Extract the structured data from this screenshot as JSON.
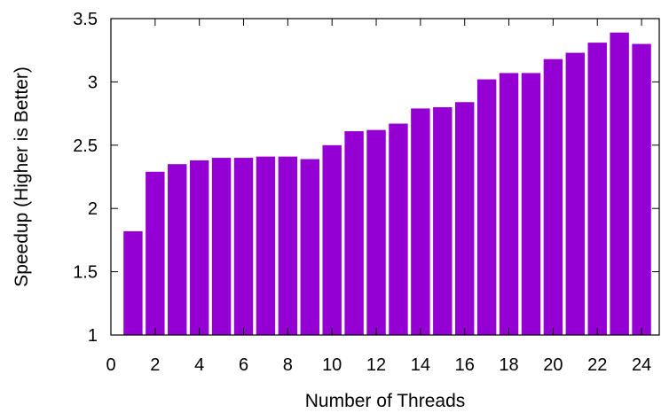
{
  "chart_data": {
    "type": "bar",
    "xlabel": "Number of Threads",
    "ylabel": "Speedup (Higher is Better)",
    "xlim": [
      0,
      24.8
    ],
    "ylim": [
      1,
      3.5
    ],
    "xticks": [
      0,
      2,
      4,
      6,
      8,
      10,
      12,
      14,
      16,
      18,
      20,
      22,
      24
    ],
    "yticks": [
      1,
      1.5,
      2,
      2.5,
      3,
      3.5
    ],
    "ytick_labels": [
      "1",
      "1.5",
      "2",
      "2.5",
      "3",
      "3.5"
    ],
    "x": [
      1,
      2,
      3,
      4,
      5,
      6,
      7,
      8,
      9,
      10,
      11,
      12,
      13,
      14,
      15,
      16,
      17,
      18,
      19,
      20,
      21,
      22,
      23,
      24
    ],
    "values": [
      1.82,
      2.29,
      2.35,
      2.38,
      2.4,
      2.4,
      2.41,
      2.41,
      2.39,
      2.5,
      2.61,
      2.62,
      2.67,
      2.79,
      2.8,
      2.84,
      3.02,
      3.07,
      3.07,
      3.18,
      3.23,
      3.31,
      3.39,
      3.3
    ],
    "bar_color": "#9400d3",
    "grid": false,
    "legend": "none"
  }
}
